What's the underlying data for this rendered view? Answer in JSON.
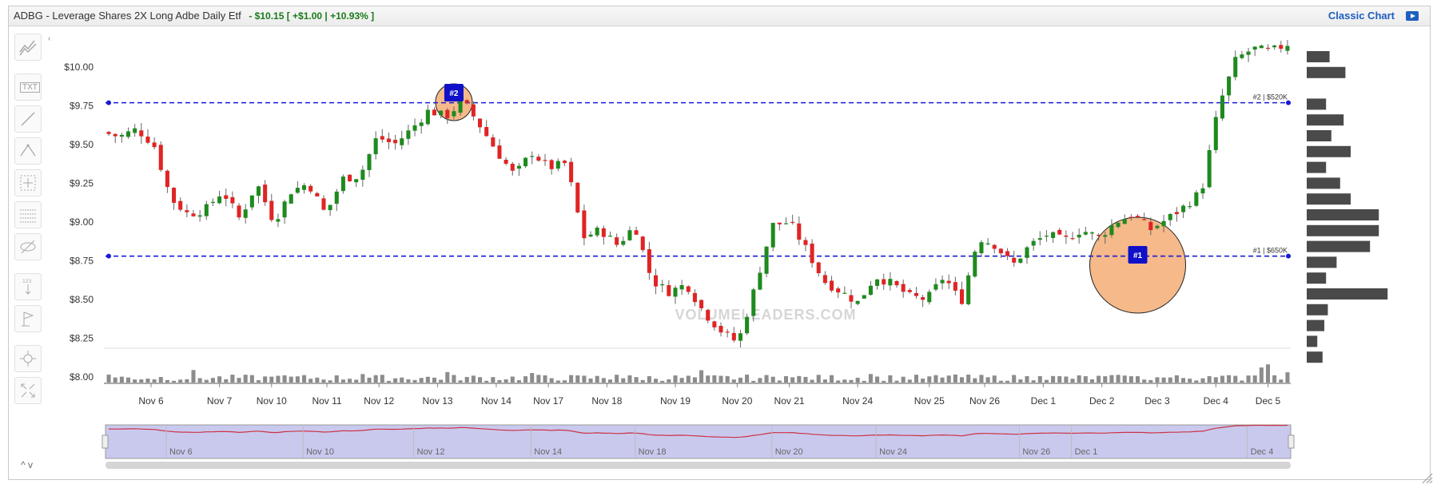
{
  "header": {
    "title": "ADBG - Leverage Shares 2X Long Adbe Daily Etf",
    "quote": "- $10.15 [ +$1.00 | +10.93% ]",
    "classic_link": "Classic Chart"
  },
  "toolbar": {
    "tools": [
      {
        "name": "chart-type-icon"
      },
      {
        "name": "text-tool-icon",
        "label": "TXT"
      },
      {
        "name": "line-tool-icon"
      },
      {
        "name": "fibonacci-tool-icon"
      },
      {
        "name": "crosshair-tool-icon"
      },
      {
        "name": "hline-tool-icon"
      },
      {
        "name": "hide-icon"
      },
      {
        "name": "measure-tool-icon",
        "label": "123"
      },
      {
        "name": "flag-tool-icon"
      },
      {
        "name": "zoom-icon"
      },
      {
        "name": "fullscreen-icon"
      }
    ],
    "updown": "^ v"
  },
  "colors": {
    "up": "#1e8a1e",
    "down": "#e02424",
    "volume": "#8c8c8c",
    "level_line": "#1a1ad6",
    "highlight_fill": "#f5b98a",
    "marker": "#1010c8",
    "navigator_fill": "#c9c9ee",
    "navigator_line": "#cc3344",
    "profile": "#4a4a4a"
  },
  "chart_data": {
    "type": "candlestick",
    "watermark": "VOLUMELEADERS.COM",
    "y_ticks": [
      "$10.00",
      "$9.75",
      "$9.50",
      "$9.25",
      "$9.00",
      "$8.75",
      "$8.50",
      "$8.25",
      "$8.00"
    ],
    "ylim": [
      8.0,
      10.2
    ],
    "x_labels": [
      "Nov 6",
      "Nov 7",
      "Nov 10",
      "Nov 11",
      "Nov 12",
      "Nov 13",
      "Nov 14",
      "Nov 17",
      "Nov 18",
      "Nov 19",
      "Nov 20",
      "Nov 21",
      "Nov 24",
      "Nov 25",
      "Nov 26",
      "Dec 1",
      "Dec 2",
      "Dec 3",
      "Dec 4",
      "Dec 5"
    ],
    "day_candles": [
      14,
      7,
      9,
      8,
      8,
      10,
      8,
      8,
      10,
      11,
      8,
      8,
      13,
      9,
      8,
      10,
      8,
      9,
      9,
      7
    ],
    "close_path": [
      9.58,
      9.55,
      9.6,
      9.5,
      9.15,
      9.05,
      9.08,
      9.2,
      9.02,
      9.25,
      9.0,
      9.2,
      9.25,
      9.05,
      9.28,
      9.3,
      9.55,
      9.5,
      9.6,
      9.72,
      9.68,
      9.78,
      9.62,
      9.45,
      9.3,
      9.45,
      9.35,
      9.38,
      8.9,
      8.95,
      8.85,
      8.98,
      8.62,
      8.55,
      8.6,
      8.42,
      8.3,
      8.22,
      8.58,
      8.98,
      9.0,
      8.82,
      8.62,
      8.55,
      8.48,
      8.65,
      8.6,
      8.52,
      8.5,
      8.65,
      8.48,
      8.9,
      8.85,
      8.72,
      8.85,
      8.92,
      8.88,
      8.95,
      8.9,
      9.0,
      9.05,
      8.95,
      9.02,
      9.1,
      9.2,
      9.75,
      10.05,
      10.12,
      10.1,
      10.15
    ],
    "volume_profile": [
      0.26,
      0.44,
      0,
      0.22,
      0.42,
      0.28,
      0.5,
      0.22,
      0.38,
      0.5,
      0.82,
      0.82,
      0.72,
      0.34,
      0.22,
      0.92,
      0.24,
      0.2,
      0.12,
      0.18
    ],
    "levels": [
      {
        "price": 9.77,
        "label": "#2 | $520K"
      },
      {
        "price": 8.78,
        "label": "#1 | $650K"
      }
    ],
    "markers": [
      {
        "label": "#2",
        "candle": 53
      },
      {
        "label": "#1",
        "candle": 158
      }
    ],
    "navigator_labels": [
      "Nov 6",
      "Nov 10",
      "Nov 12",
      "Nov 14",
      "Nov 18",
      "Nov 20",
      "Nov 24",
      "Nov 26",
      "Dec 1",
      "Dec 4"
    ]
  }
}
